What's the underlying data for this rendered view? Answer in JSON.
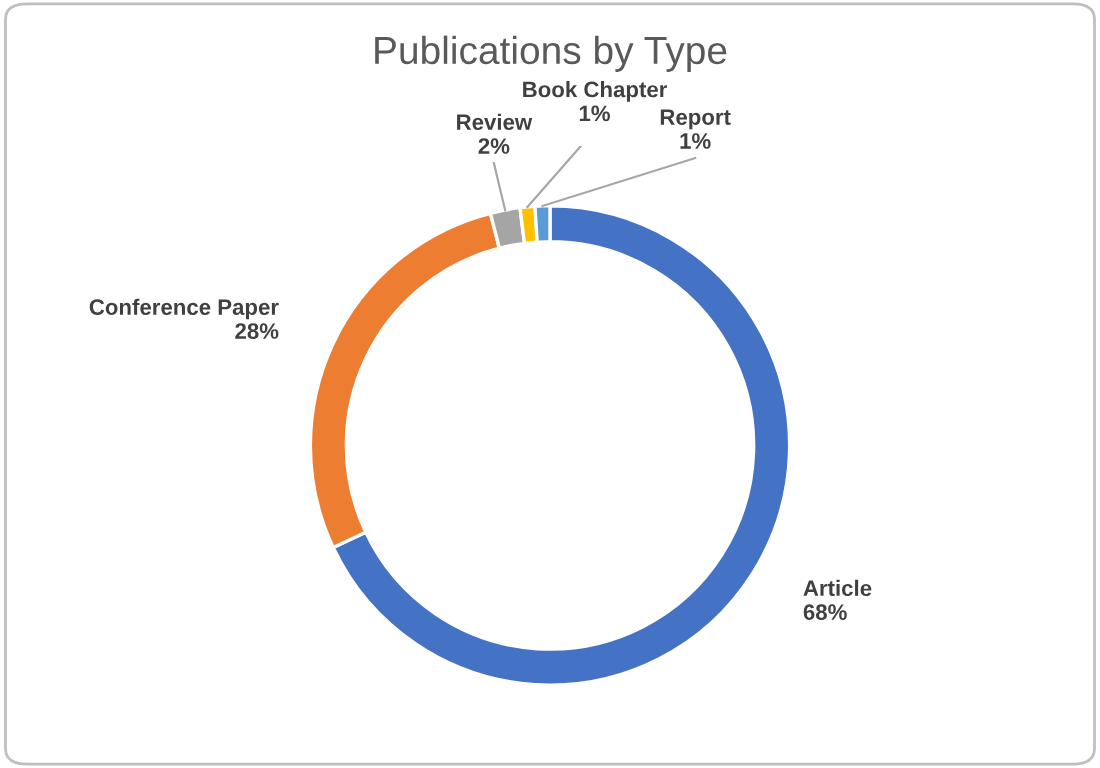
{
  "chart_data": {
    "type": "donut",
    "title": "Publications by Type",
    "categories": [
      "Article",
      "Conference Paper",
      "Review",
      "Book Chapter",
      "Report"
    ],
    "values": [
      68,
      28,
      2,
      1,
      1
    ],
    "value_labels": [
      "68%",
      "28%",
      "2%",
      "1%",
      "1%"
    ],
    "colors": [
      "#4472c4",
      "#ed7d31",
      "#a5a5a5",
      "#ffc000",
      "#5b9bd5"
    ],
    "legend": false
  }
}
